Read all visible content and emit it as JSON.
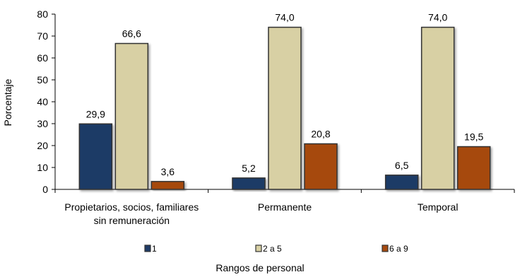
{
  "chart_data": {
    "type": "bar",
    "categories": [
      [
        "Propietarios, socios, familiares",
        "sin remuneración"
      ],
      [
        "Permanente"
      ],
      [
        "Temporal"
      ]
    ],
    "series": [
      {
        "name": "1",
        "color": "#1f3b66",
        "values": [
          29.9,
          5.2,
          6.5
        ],
        "labels": [
          "29,9",
          "5,2",
          "6,5"
        ]
      },
      {
        "name": "2 a 5",
        "color": "#d8d0a4",
        "values": [
          66.6,
          74.0,
          74.0
        ],
        "labels": [
          "66,6",
          "74,0",
          "74,0"
        ]
      },
      {
        "name": "6 a 9",
        "color": "#a64a10",
        "values": [
          3.6,
          20.8,
          19.5
        ],
        "labels": [
          "3,6",
          "20,8",
          "19,5"
        ]
      }
    ],
    "ylabel": "Porcentaje",
    "xlabel": "Rangos de personal",
    "ylim": [
      0,
      80
    ],
    "yticks": [
      0,
      10,
      20,
      30,
      40,
      50,
      60,
      70,
      80
    ],
    "grid": false,
    "legend_position": "bottom"
  }
}
